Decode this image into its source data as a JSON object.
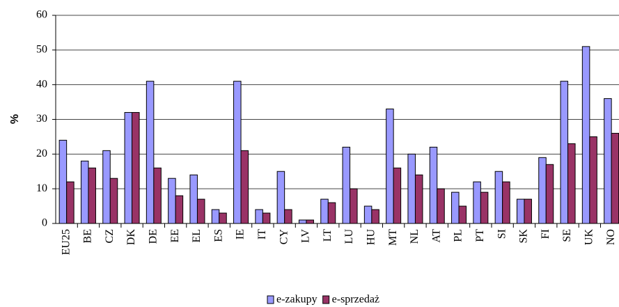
{
  "chart_data": {
    "type": "bar",
    "ylabel": "%",
    "categories": [
      "EU25",
      "BE",
      "CZ",
      "DK",
      "DE",
      "EE",
      "EL",
      "ES",
      "IE",
      "IT",
      "CY",
      "LV",
      "LT",
      "LU",
      "HU",
      "MT",
      "NL",
      "AT",
      "PL",
      "PT",
      "SI",
      "SK",
      "FI",
      "SE",
      "UK",
      "NO"
    ],
    "series": [
      {
        "name": "e-zakupy",
        "color": "#9999ff",
        "values": [
          24,
          18,
          21,
          32,
          41,
          13,
          14,
          4,
          41,
          4,
          15,
          1,
          7,
          22,
          5,
          33,
          20,
          22,
          9,
          12,
          15,
          7,
          19,
          41,
          51,
          36
        ]
      },
      {
        "name": "e-sprzedaż",
        "color": "#993366",
        "values": [
          12,
          16,
          13,
          32,
          16,
          8,
          7,
          3,
          21,
          3,
          4,
          1,
          6,
          10,
          4,
          16,
          14,
          10,
          5,
          9,
          12,
          7,
          17,
          23,
          25,
          26
        ]
      }
    ],
    "ylim": [
      0,
      60
    ],
    "yticks": [
      0,
      10,
      20,
      30,
      40,
      50,
      60
    ],
    "grid": true,
    "legend": "bottom"
  }
}
